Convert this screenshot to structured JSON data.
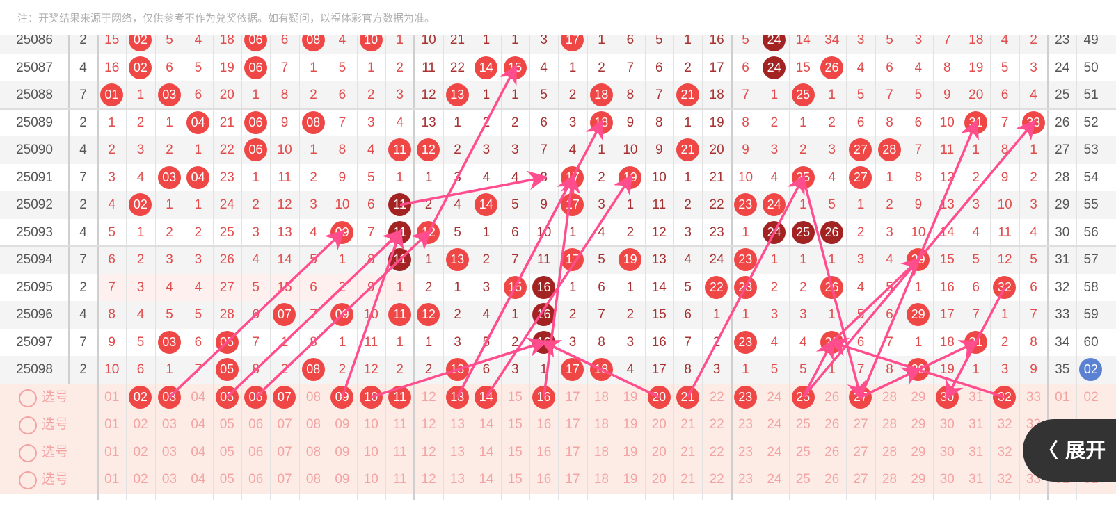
{
  "notice": "注：开奖结果来源于网络，仅供参考不作为兑奖依据。如有疑问，以福体彩官方数据为准。",
  "colors": {
    "ball": "#ef4646",
    "repeat_ball": "#a32222",
    "blue_ball": "#5b82d2",
    "arrow": "#ff4d8d",
    "selection_bg": "#fdece6"
  },
  "rows": [
    {
      "issue": "25086",
      "v": "2",
      "cells": [
        "15",
        "02",
        "5",
        "4",
        "18",
        "06",
        "6",
        "08",
        "4",
        "10",
        "1",
        "10",
        "21",
        "1",
        "1",
        "3",
        "17",
        "1",
        "6",
        "5",
        "1",
        "16",
        "5",
        "24",
        "14",
        "34",
        "3",
        "5",
        "3",
        "7",
        "18",
        "4",
        "2"
      ],
      "hits": [
        "02",
        "06",
        "08",
        "10",
        "17",
        "24"
      ],
      "repeat": [
        "24"
      ],
      "extra": [
        "23",
        "49"
      ]
    },
    {
      "issue": "25087",
      "v": "4",
      "cells": [
        "16",
        "02",
        "6",
        "5",
        "19",
        "06",
        "7",
        "1",
        "5",
        "1",
        "2",
        "11",
        "22",
        "14",
        "15",
        "4",
        "1",
        "2",
        "7",
        "6",
        "2",
        "17",
        "6",
        "24",
        "15",
        "26",
        "4",
        "6",
        "4",
        "8",
        "19",
        "5",
        "3"
      ],
      "hits": [
        "02",
        "06",
        "14",
        "15",
        "24",
        "26"
      ],
      "repeat": [
        "24"
      ],
      "extra": [
        "24",
        "50"
      ]
    },
    {
      "issue": "25088",
      "v": "7",
      "cells": [
        "01",
        "1",
        "03",
        "6",
        "20",
        "1",
        "8",
        "2",
        "6",
        "2",
        "3",
        "12",
        "13",
        "1",
        "1",
        "5",
        "2",
        "18",
        "8",
        "7",
        "21",
        "18",
        "7",
        "1",
        "25",
        "1",
        "5",
        "7",
        "5",
        "9",
        "20",
        "6",
        "4"
      ],
      "hits": [
        "01",
        "03",
        "13",
        "18",
        "21",
        "25"
      ],
      "repeat": [],
      "extra": [
        "25",
        "51"
      ]
    },
    {
      "issue": "25089",
      "v": "2",
      "cells": [
        "1",
        "2",
        "1",
        "04",
        "21",
        "06",
        "9",
        "08",
        "7",
        "3",
        "4",
        "13",
        "1",
        "2",
        "2",
        "6",
        "3",
        "18",
        "9",
        "8",
        "1",
        "19",
        "8",
        "2",
        "1",
        "2",
        "6",
        "8",
        "6",
        "10",
        "31",
        "7",
        "33"
      ],
      "hits": [
        "04",
        "06",
        "08",
        "18",
        "31",
        "33"
      ],
      "repeat": [],
      "extra": [
        "26",
        "52"
      ]
    },
    {
      "issue": "25090",
      "v": "4",
      "cells": [
        "2",
        "3",
        "2",
        "1",
        "22",
        "06",
        "10",
        "1",
        "8",
        "4",
        "11",
        "12",
        "2",
        "3",
        "3",
        "7",
        "4",
        "1",
        "10",
        "9",
        "21",
        "20",
        "9",
        "3",
        "2",
        "3",
        "27",
        "28",
        "7",
        "11",
        "1",
        "8",
        "1"
      ],
      "hits": [
        "06",
        "11",
        "12",
        "21",
        "27",
        "28"
      ],
      "repeat": [],
      "extra": [
        "27",
        "53"
      ]
    },
    {
      "issue": "25091",
      "v": "7",
      "cells": [
        "3",
        "4",
        "03",
        "04",
        "23",
        "1",
        "11",
        "2",
        "9",
        "5",
        "1",
        "1",
        "3",
        "4",
        "4",
        "8",
        "17",
        "2",
        "19",
        "10",
        "1",
        "21",
        "10",
        "4",
        "25",
        "4",
        "27",
        "1",
        "8",
        "12",
        "2",
        "9",
        "2"
      ],
      "hits": [
        "03",
        "04",
        "17",
        "19",
        "25",
        "27"
      ],
      "repeat": [],
      "extra": [
        "28",
        "54"
      ]
    },
    {
      "issue": "25092",
      "v": "2",
      "cells": [
        "4",
        "02",
        "1",
        "1",
        "24",
        "2",
        "12",
        "3",
        "10",
        "6",
        "11",
        "2",
        "4",
        "14",
        "5",
        "9",
        "17",
        "3",
        "1",
        "11",
        "2",
        "22",
        "23",
        "24",
        "1",
        "5",
        "1",
        "2",
        "9",
        "13",
        "3",
        "10",
        "3"
      ],
      "hits": [
        "02",
        "11",
        "14",
        "17",
        "23",
        "24"
      ],
      "repeat": [
        "11"
      ],
      "extra": [
        "29",
        "55"
      ]
    },
    {
      "issue": "25093",
      "v": "4",
      "cells": [
        "5",
        "1",
        "2",
        "2",
        "25",
        "3",
        "13",
        "4",
        "09",
        "7",
        "11",
        "12",
        "5",
        "1",
        "6",
        "10",
        "1",
        "4",
        "2",
        "12",
        "3",
        "23",
        "1",
        "24",
        "25",
        "26",
        "2",
        "3",
        "10",
        "14",
        "4",
        "11",
        "4"
      ],
      "hits": [
        "09",
        "11",
        "12",
        "24",
        "25",
        "26"
      ],
      "repeat": [
        "11",
        "24",
        "25",
        "26"
      ],
      "extra": [
        "30",
        "56"
      ]
    },
    {
      "issue": "25094",
      "v": "7",
      "cells": [
        "6",
        "2",
        "3",
        "3",
        "26",
        "4",
        "14",
        "5",
        "1",
        "8",
        "11",
        "1",
        "13",
        "2",
        "7",
        "11",
        "17",
        "5",
        "19",
        "13",
        "4",
        "24",
        "23",
        "1",
        "1",
        "1",
        "3",
        "4",
        "29",
        "15",
        "5",
        "12",
        "5"
      ],
      "hits": [
        "11",
        "13",
        "17",
        "19",
        "23",
        "29"
      ],
      "repeat": [
        "11"
      ],
      "extra": [
        "31",
        "57"
      ]
    },
    {
      "issue": "25095",
      "v": "2",
      "cells": [
        "7",
        "3",
        "4",
        "4",
        "27",
        "5",
        "15",
        "6",
        "2",
        "9",
        "1",
        "2",
        "1",
        "3",
        "15",
        "16",
        "1",
        "6",
        "1",
        "14",
        "5",
        "22",
        "23",
        "2",
        "2",
        "26",
        "4",
        "5",
        "1",
        "16",
        "6",
        "32",
        "6"
      ],
      "hits": [
        "15",
        "16",
        "22",
        "23",
        "26",
        "32"
      ],
      "repeat": [
        "16"
      ],
      "extra": [
        "32",
        "58"
      ]
    },
    {
      "issue": "25096",
      "v": "4",
      "cells": [
        "8",
        "4",
        "5",
        "5",
        "28",
        "6",
        "07",
        "7",
        "09",
        "10",
        "11",
        "12",
        "2",
        "4",
        "1",
        "16",
        "2",
        "7",
        "2",
        "15",
        "6",
        "1",
        "1",
        "3",
        "3",
        "1",
        "5",
        "6",
        "29",
        "17",
        "7",
        "1",
        "7"
      ],
      "hits": [
        "07",
        "09",
        "11",
        "12",
        "16",
        "29"
      ],
      "repeat": [
        "16"
      ],
      "extra": [
        "33",
        "59"
      ]
    },
    {
      "issue": "25097",
      "v": "7",
      "cells": [
        "9",
        "5",
        "03",
        "6",
        "05",
        "7",
        "1",
        "8",
        "1",
        "11",
        "1",
        "1",
        "3",
        "5",
        "2",
        "16",
        "3",
        "8",
        "3",
        "16",
        "7",
        "2",
        "23",
        "4",
        "4",
        "26",
        "6",
        "7",
        "1",
        "18",
        "31",
        "2",
        "8"
      ],
      "hits": [
        "03",
        "05",
        "16",
        "23",
        "26",
        "31"
      ],
      "repeat": [
        "16"
      ],
      "extra": [
        "34",
        "60"
      ]
    },
    {
      "issue": "25098",
      "v": "2",
      "cells": [
        "10",
        "6",
        "1",
        "7",
        "05",
        "8",
        "2",
        "08",
        "2",
        "12",
        "2",
        "2",
        "13",
        "6",
        "3",
        "1",
        "17",
        "18",
        "4",
        "17",
        "8",
        "3",
        "1",
        "5",
        "5",
        "1",
        "7",
        "8",
        "29",
        "19",
        "1",
        "3",
        "9"
      ],
      "hits": [
        "05",
        "08",
        "13",
        "17",
        "18",
        "29"
      ],
      "repeat": [],
      "extra": [
        "35",
        "02"
      ],
      "blue_extra": "02"
    }
  ],
  "selection": {
    "label": "选号",
    "numbers": [
      "01",
      "02",
      "03",
      "04",
      "05",
      "06",
      "07",
      "08",
      "09",
      "10",
      "11",
      "12",
      "13",
      "14",
      "15",
      "16",
      "17",
      "18",
      "19",
      "20",
      "21",
      "22",
      "23",
      "24",
      "25",
      "26",
      "27",
      "28",
      "29",
      "30",
      "31",
      "32",
      "33"
    ],
    "blue_numbers": [
      "01",
      "02"
    ],
    "rows": [
      {
        "selected": [
          "02",
          "03",
          "05",
          "06",
          "07",
          "09",
          "10",
          "11",
          "13",
          "14",
          "16",
          "20",
          "21",
          "23",
          "25",
          "27",
          "30",
          "32"
        ]
      },
      {
        "selected": []
      },
      {
        "selected": []
      },
      {
        "selected": []
      }
    ]
  },
  "expand_button": {
    "icon": "chevron-left-icon",
    "label": "展开"
  }
}
